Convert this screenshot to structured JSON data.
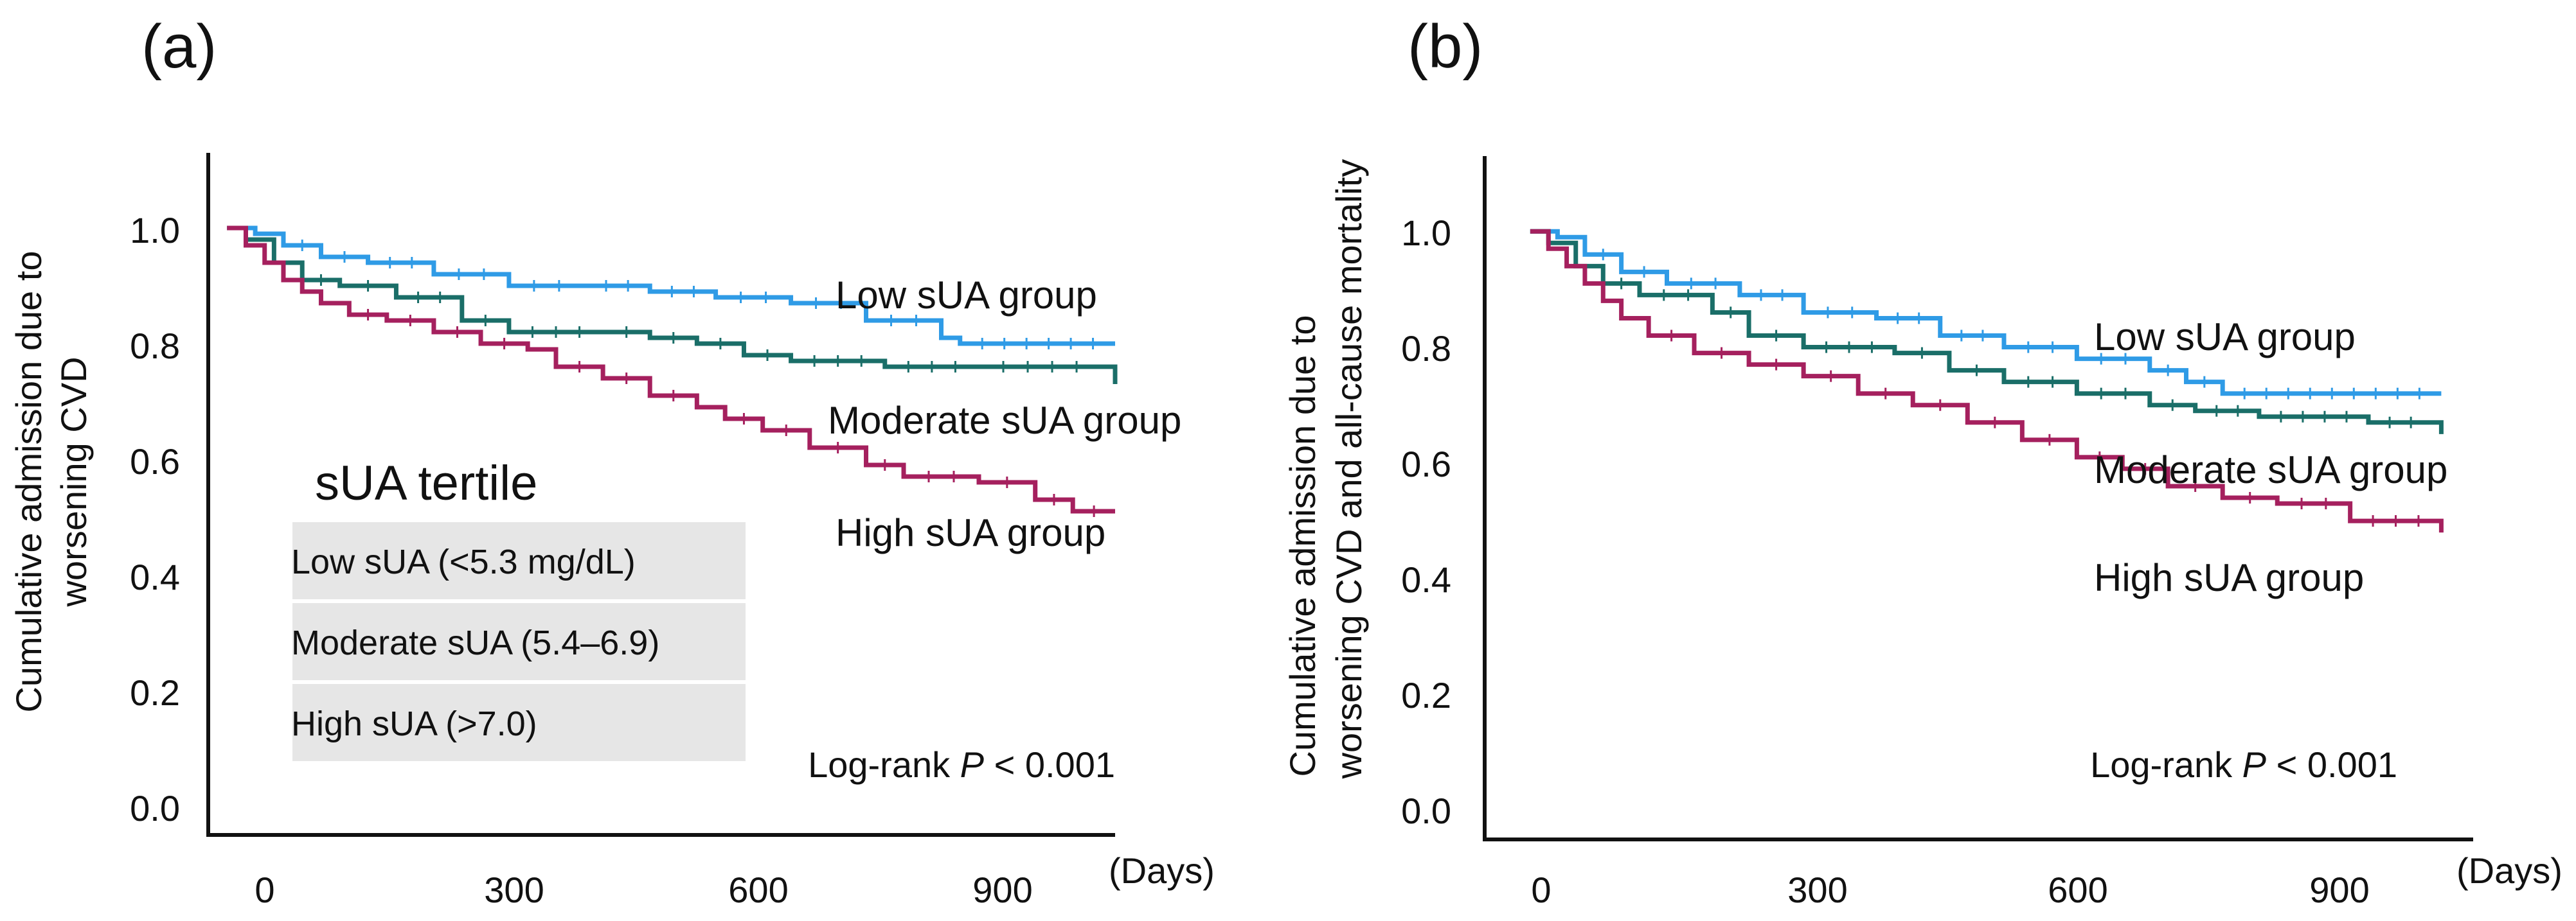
{
  "chart_data": [
    {
      "type": "line",
      "panel_label": "(a)",
      "ylabel_lines": [
        "Cumulative admission due to",
        "worsening CVD"
      ],
      "xunit": "(Days)",
      "xticks": [
        0,
        300,
        600,
        900
      ],
      "yticks": [
        "0.0",
        "0.2",
        "0.4",
        "0.6",
        "0.8",
        "1.0"
      ],
      "xlim": [
        -20,
        945
      ],
      "ylim": [
        -0.05,
        1.13
      ],
      "grid": false,
      "legend": {
        "title": "sUA tertile",
        "rows": [
          "Low sUA (<5.3 mg/dL)",
          "Moderate sUA (5.4–6.9)",
          "High sUA (>7.0)"
        ]
      },
      "annotation": {
        "prefix": "Log-rank ",
        "p": "P",
        "suffix": " < 0.001"
      },
      "series": [
        {
          "name": "Low sUA group",
          "color": "#2f9be6",
          "x": [
            0,
            30,
            60,
            100,
            150,
            220,
            300,
            380,
            450,
            520,
            600,
            680,
            760,
            780,
            945
          ],
          "y": [
            1.0,
            0.99,
            0.97,
            0.95,
            0.94,
            0.92,
            0.9,
            0.9,
            0.89,
            0.88,
            0.87,
            0.84,
            0.81,
            0.8,
            0.8
          ]
        },
        {
          "name": "Moderate sUA group",
          "color": "#1a6e68",
          "x": [
            0,
            20,
            50,
            80,
            120,
            180,
            250,
            300,
            400,
            450,
            500,
            550,
            600,
            700,
            800,
            930,
            945
          ],
          "y": [
            1.0,
            0.98,
            0.94,
            0.91,
            0.9,
            0.88,
            0.84,
            0.82,
            0.82,
            0.81,
            0.8,
            0.78,
            0.77,
            0.76,
            0.76,
            0.76,
            0.73
          ]
        },
        {
          "name": "High sUA group",
          "color": "#a5205e",
          "x": [
            0,
            20,
            40,
            60,
            80,
            100,
            130,
            170,
            220,
            270,
            320,
            350,
            400,
            450,
            500,
            530,
            570,
            620,
            680,
            720,
            800,
            860,
            900,
            945
          ],
          "y": [
            1.0,
            0.97,
            0.94,
            0.91,
            0.89,
            0.87,
            0.85,
            0.84,
            0.82,
            0.8,
            0.79,
            0.76,
            0.74,
            0.71,
            0.69,
            0.67,
            0.65,
            0.62,
            0.59,
            0.57,
            0.56,
            0.53,
            0.51,
            0.51
          ]
        }
      ]
    },
    {
      "type": "line",
      "panel_label": "(b)",
      "ylabel_lines": [
        "Cumulative admission due to",
        "worsening CVD and all-cause mortality"
      ],
      "xunit": "(Days)",
      "xticks": [
        0,
        300,
        600,
        900
      ],
      "yticks": [
        "0.0",
        "0.2",
        "0.4",
        "0.6",
        "0.8",
        "1.0"
      ],
      "xlim": [
        -50,
        1035
      ],
      "ylim": [
        -0.05,
        1.13
      ],
      "grid": false,
      "annotation": {
        "prefix": "Log-rank ",
        "p": "P",
        "suffix": " < 0.001"
      },
      "series": [
        {
          "name": "Low sUA group",
          "color": "#2f9be6",
          "x": [
            0,
            30,
            60,
            100,
            150,
            230,
            300,
            380,
            450,
            520,
            600,
            680,
            720,
            760,
            1000
          ],
          "y": [
            1.0,
            0.99,
            0.96,
            0.93,
            0.91,
            0.89,
            0.86,
            0.85,
            0.82,
            0.8,
            0.78,
            0.76,
            0.74,
            0.72,
            0.72
          ]
        },
        {
          "name": "Moderate sUA group",
          "color": "#1a6e68",
          "x": [
            0,
            20,
            50,
            80,
            120,
            200,
            240,
            300,
            400,
            460,
            520,
            600,
            680,
            730,
            800,
            920,
            990,
            1000
          ],
          "y": [
            1.0,
            0.98,
            0.94,
            0.91,
            0.89,
            0.86,
            0.82,
            0.8,
            0.79,
            0.76,
            0.74,
            0.72,
            0.7,
            0.69,
            0.68,
            0.67,
            0.67,
            0.65
          ]
        },
        {
          "name": "High sUA group",
          "color": "#a5205e",
          "x": [
            0,
            20,
            40,
            60,
            80,
            100,
            130,
            180,
            240,
            300,
            360,
            420,
            480,
            540,
            600,
            650,
            700,
            760,
            820,
            900,
            1000
          ],
          "y": [
            1.0,
            0.97,
            0.94,
            0.91,
            0.88,
            0.85,
            0.82,
            0.79,
            0.77,
            0.75,
            0.72,
            0.7,
            0.67,
            0.64,
            0.61,
            0.59,
            0.56,
            0.54,
            0.53,
            0.5,
            0.48
          ]
        }
      ]
    }
  ]
}
